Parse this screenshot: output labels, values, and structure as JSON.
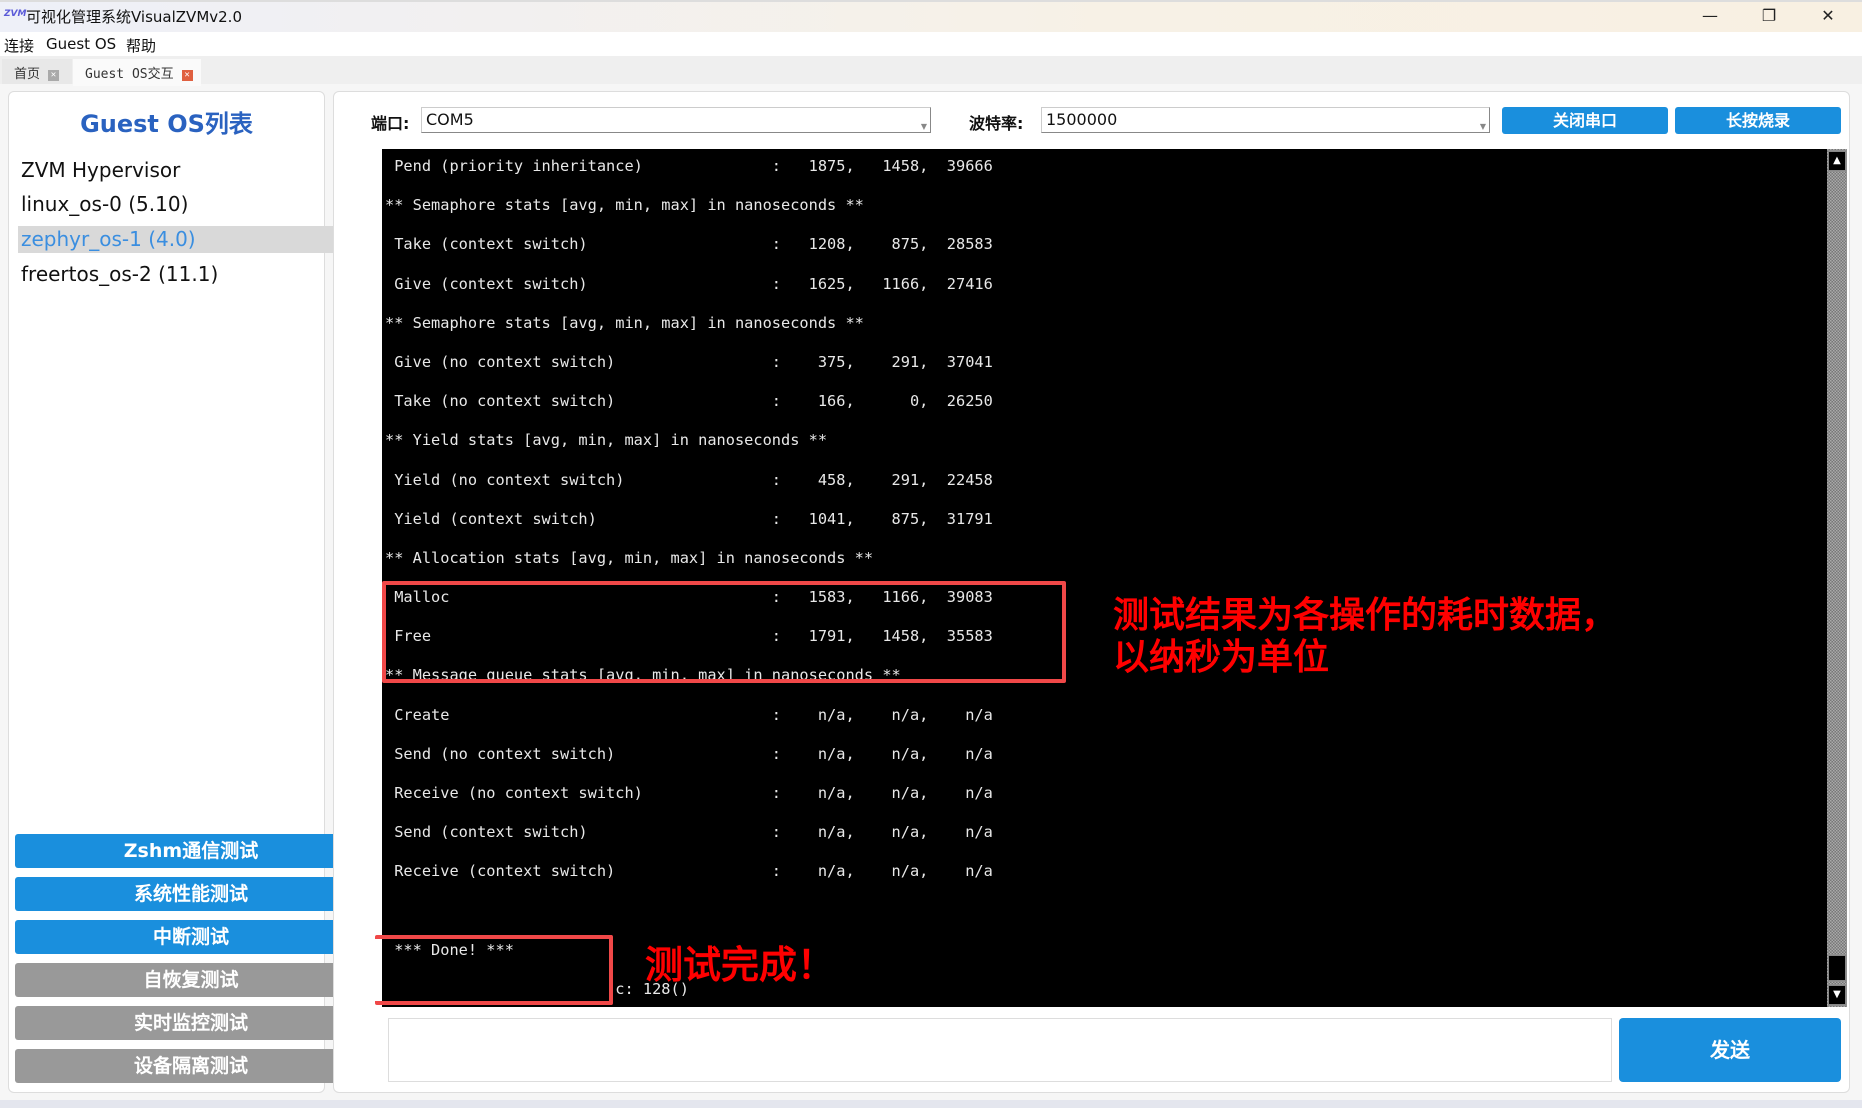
{
  "window": {
    "title": "可视化管理系统VisualZVMv2.0",
    "icon": "visualzvm-logo",
    "minimize": "—",
    "restore": "❐",
    "close": "✕"
  },
  "menu": [
    "连接",
    "Guest OS",
    "帮助"
  ],
  "tabs": [
    {
      "label": "首页",
      "active": false
    },
    {
      "label": "Guest OS交互",
      "active": true
    }
  ],
  "sidebar": {
    "title": "Guest OS列表",
    "os_list": [
      {
        "label": "ZVM Hypervisor",
        "selected": false
      },
      {
        "label": "linux_os-0 (5.10)",
        "selected": false
      },
      {
        "label": "zephyr_os-1 (4.0)",
        "selected": true
      },
      {
        "label": "freertos_os-2 (11.1)",
        "selected": false
      }
    ],
    "buttons": [
      {
        "label": "Zshm通信测试",
        "enabled": true
      },
      {
        "label": "系统性能测试",
        "enabled": true
      },
      {
        "label": "中断测试",
        "enabled": true
      },
      {
        "label": "自恢复测试",
        "enabled": false
      },
      {
        "label": "实时监控测试",
        "enabled": false
      },
      {
        "label": "设备隔离测试",
        "enabled": false
      }
    ]
  },
  "serial": {
    "port_label": "端口:",
    "port_value": "COM5",
    "baud_label": "波特率:",
    "baud_value": "1500000",
    "close_port_label": "关闭串口",
    "flash_label": "长按烧录"
  },
  "terminal": {
    "lines": [
      {
        "name": "Pend (priority inheritance)",
        "avg": "1875",
        "min": "1458",
        "max": "39666"
      },
      {
        "header": "** Semaphore stats [avg, min, max] in nanoseconds **"
      },
      {
        "name": "Take (context switch)",
        "avg": "1208",
        "min": "875",
        "max": "28583"
      },
      {
        "name": "Give (context switch)",
        "avg": "1625",
        "min": "1166",
        "max": "27416"
      },
      {
        "header": "** Semaphore stats [avg, min, max] in nanoseconds **"
      },
      {
        "name": "Give (no context switch)",
        "avg": "375",
        "min": "291",
        "max": "37041"
      },
      {
        "name": "Take (no context switch)",
        "avg": "166",
        "min": "0",
        "max": "26250"
      },
      {
        "header": "** Yield stats [avg, min, max] in nanoseconds **"
      },
      {
        "name": "Yield (no context switch)",
        "avg": "458",
        "min": "291",
        "max": "22458"
      },
      {
        "name": "Yield (context switch)",
        "avg": "1041",
        "min": "875",
        "max": "31791"
      },
      {
        "header": "** Allocation stats [avg, min, max] in nanoseconds **"
      },
      {
        "name": "Malloc",
        "avg": "1583",
        "min": "1166",
        "max": "39083"
      },
      {
        "name": "Free",
        "avg": "1791",
        "min": "1458",
        "max": "35583"
      },
      {
        "header": "** Message queue stats [avg, min, max] in nanoseconds **"
      },
      {
        "name": "Create",
        "avg": "n/a",
        "min": "n/a",
        "max": "n/a"
      },
      {
        "name": "Send (no context switch)",
        "avg": "n/a",
        "min": "n/a",
        "max": "n/a"
      },
      {
        "name": "Receive (no context switch)",
        "avg": "n/a",
        "min": "n/a",
        "max": "n/a"
      },
      {
        "name": "Send (context switch)",
        "avg": "n/a",
        "min": "n/a",
        "max": "n/a"
      },
      {
        "name": "Receive (context switch)",
        "avg": "n/a",
        "min": "n/a",
        "max": "n/a"
      },
      {
        "header": ""
      },
      {
        "header": " *** Done! ***"
      },
      {
        "header": "                         c: 128()"
      }
    ]
  },
  "send": {
    "input_value": "",
    "button_label": "发送"
  },
  "annotations": {
    "result_note_line1": "测试结果为各操作的耗时数据，",
    "result_note_line2": "以纳秒为单位",
    "done_note": "测试完成！",
    "color": "#ff0000"
  },
  "colors": {
    "accent": "#1a8fdd",
    "disabled": "#999999",
    "title": "#2a62c0",
    "selected_text": "#3a8ee0"
  }
}
